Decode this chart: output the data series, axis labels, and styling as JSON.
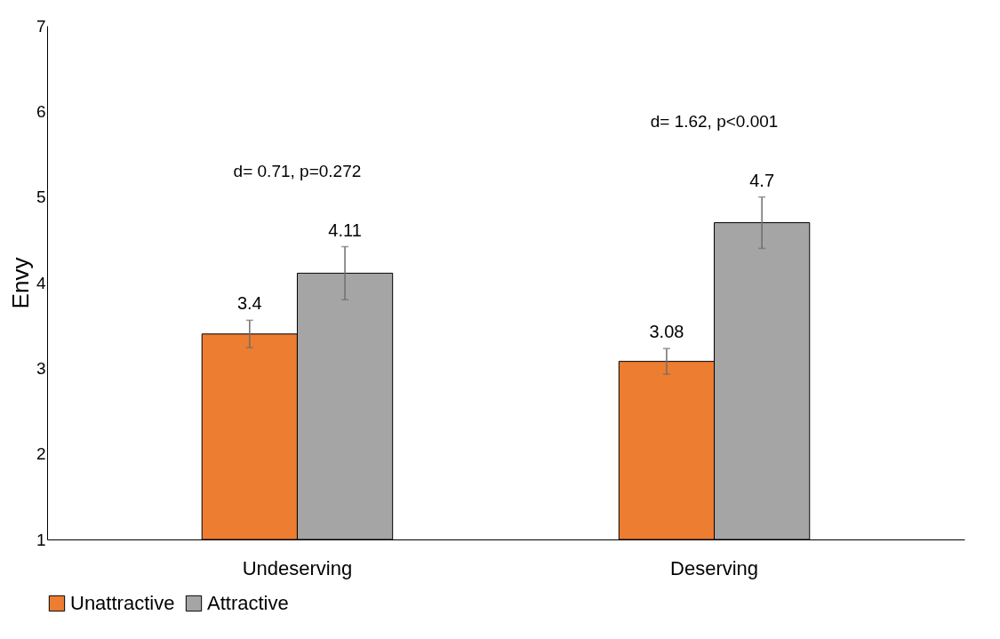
{
  "chart_data": {
    "type": "bar",
    "ylabel": "Envy",
    "categories": [
      "Undeserving",
      "Deserving"
    ],
    "series": [
      {
        "name": "Unattractive",
        "color": "#ed7d31",
        "values": [
          3.4,
          3.08
        ],
        "errors": [
          0.16,
          0.15
        ]
      },
      {
        "name": "Attractive",
        "color": "#a5a5a5",
        "values": [
          4.11,
          4.7
        ],
        "errors": [
          0.31,
          0.3
        ]
      }
    ],
    "ylim": [
      1,
      7
    ],
    "yticks": [
      1,
      2,
      3,
      4,
      5,
      6,
      7
    ],
    "grid": false,
    "legend": "bottom",
    "data_labels": true,
    "annotations": [
      "d= 0.71, p=0.272",
      "d= 1.62, p<0.001"
    ]
  }
}
